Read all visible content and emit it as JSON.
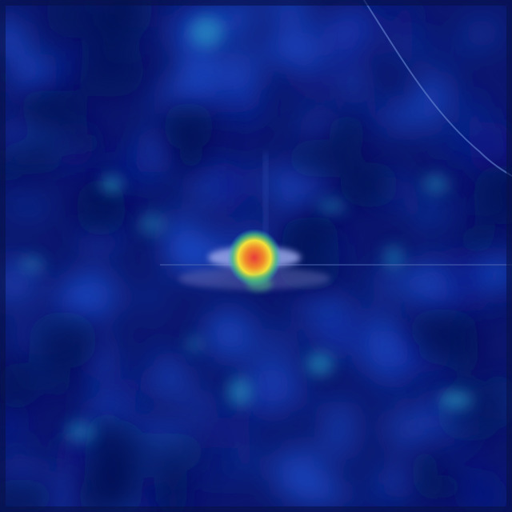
{
  "image": {
    "kind": "attention heatmap overlay",
    "colormap": "jet",
    "palette": {
      "background": "#0a1470",
      "low": "#0a1a8c",
      "mid": "#1d4fd0",
      "cyan": "#2aa6c8",
      "green": "#4dbf7a",
      "yellow": "#f2e23a",
      "orange": "#f08a2a",
      "hot": "#e83a3a"
    }
  }
}
